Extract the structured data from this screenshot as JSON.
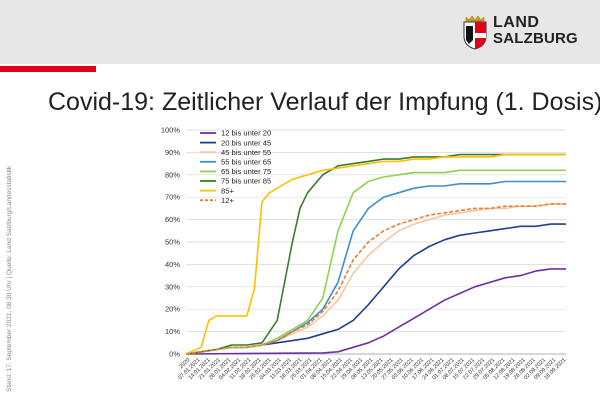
{
  "header": {
    "logo_line1": "LAND",
    "logo_line2": "SALZBURG",
    "colors": {
      "band": "#e7e7e7",
      "accent": "#e2001a"
    }
  },
  "title": "Covid-19: Zeitlicher Verlauf der Impfung (1. Dosis)",
  "source_note": "Stand: 17. September 2021, 08.30 Uhr | Quelle: Land Salzburg/Landesstatistik",
  "chart_data": {
    "type": "line",
    "ylim": [
      0,
      100
    ],
    "y_ticks": [
      "0%",
      "10%",
      "20%",
      "30%",
      "40%",
      "50%",
      "60%",
      "70%",
      "80%",
      "90%",
      "100%"
    ],
    "x_range": [
      0,
      50
    ],
    "x_labels": [
      "2020",
      "07.01.2021",
      "14.01.2021",
      "21.01.2021",
      "28.01.2021",
      "04.02.2021",
      "11.02.2021",
      "18.02.2021",
      "25.02.2021",
      "04.03.2021",
      "11.03.2021",
      "18.03.2021",
      "25.03.2021",
      "01.04.2021",
      "08.04.2021",
      "15.04.2021",
      "22.04.2021",
      "29.04.2021",
      "06.05.2021",
      "13.05.2021",
      "20.05.2021",
      "27.05.2021",
      "03.06.2021",
      "10.06.2021",
      "17.06.2021",
      "24.06.2021",
      "01.07.2021",
      "08.07.2021",
      "15.07.2021",
      "22.07.2021",
      "29.07.2021",
      "05.08.2021",
      "12.08.2021",
      "19.08.2021",
      "26.08.2021",
      "02.09.2021",
      "09.09.2021",
      "16.09.2021"
    ],
    "series": [
      {
        "name": "12 bis unter 20",
        "color": "#7030a0",
        "dashed": false,
        "points": [
          [
            0,
            0
          ],
          [
            18,
            0.5
          ],
          [
            20,
            1
          ],
          [
            22,
            3
          ],
          [
            24,
            5
          ],
          [
            26,
            8
          ],
          [
            28,
            12
          ],
          [
            30,
            16
          ],
          [
            32,
            20
          ],
          [
            34,
            24
          ],
          [
            36,
            27
          ],
          [
            38,
            30
          ],
          [
            40,
            32
          ],
          [
            42,
            34
          ],
          [
            44,
            35
          ],
          [
            46,
            37
          ],
          [
            48,
            38
          ],
          [
            50,
            38
          ]
        ]
      },
      {
        "name": "20 bis unter 45",
        "color": "#203f8c",
        "dashed": false,
        "points": [
          [
            0,
            0
          ],
          [
            2,
            1
          ],
          [
            4,
            2
          ],
          [
            6,
            3
          ],
          [
            8,
            3
          ],
          [
            10,
            4
          ],
          [
            12,
            5
          ],
          [
            14,
            6
          ],
          [
            16,
            7
          ],
          [
            18,
            9
          ],
          [
            20,
            11
          ],
          [
            22,
            15
          ],
          [
            24,
            22
          ],
          [
            26,
            30
          ],
          [
            28,
            38
          ],
          [
            30,
            44
          ],
          [
            32,
            48
          ],
          [
            34,
            51
          ],
          [
            36,
            53
          ],
          [
            38,
            54
          ],
          [
            40,
            55
          ],
          [
            42,
            56
          ],
          [
            44,
            57
          ],
          [
            46,
            57
          ],
          [
            48,
            58
          ],
          [
            50,
            58
          ]
        ]
      },
      {
        "name": "45 bis unter 55",
        "color": "#f7c6a3",
        "dashed": false,
        "points": [
          [
            0,
            0
          ],
          [
            2,
            1
          ],
          [
            4,
            2
          ],
          [
            6,
            3
          ],
          [
            8,
            3
          ],
          [
            10,
            4
          ],
          [
            12,
            6
          ],
          [
            14,
            9
          ],
          [
            16,
            12
          ],
          [
            18,
            17
          ],
          [
            20,
            24
          ],
          [
            22,
            36
          ],
          [
            24,
            44
          ],
          [
            26,
            50
          ],
          [
            28,
            55
          ],
          [
            30,
            58
          ],
          [
            32,
            60
          ],
          [
            34,
            62
          ],
          [
            36,
            63
          ],
          [
            38,
            64
          ],
          [
            40,
            65
          ],
          [
            42,
            65
          ],
          [
            44,
            66
          ],
          [
            46,
            66
          ],
          [
            48,
            67
          ],
          [
            50,
            67
          ]
        ]
      },
      {
        "name": "55 bis unter 65",
        "color": "#3b8fd1",
        "dashed": false,
        "points": [
          [
            0,
            0
          ],
          [
            2,
            1
          ],
          [
            4,
            2
          ],
          [
            6,
            3
          ],
          [
            8,
            3
          ],
          [
            10,
            4
          ],
          [
            12,
            6
          ],
          [
            14,
            10
          ],
          [
            16,
            14
          ],
          [
            18,
            20
          ],
          [
            20,
            32
          ],
          [
            22,
            55
          ],
          [
            24,
            65
          ],
          [
            26,
            70
          ],
          [
            28,
            72
          ],
          [
            30,
            74
          ],
          [
            32,
            75
          ],
          [
            34,
            75
          ],
          [
            36,
            76
          ],
          [
            38,
            76
          ],
          [
            40,
            76
          ],
          [
            42,
            77
          ],
          [
            44,
            77
          ],
          [
            46,
            77
          ],
          [
            48,
            77
          ],
          [
            50,
            77
          ]
        ]
      },
      {
        "name": "65 bis unter 75",
        "color": "#92d050",
        "dashed": false,
        "points": [
          [
            0,
            0
          ],
          [
            2,
            1
          ],
          [
            4,
            2
          ],
          [
            6,
            3
          ],
          [
            8,
            3
          ],
          [
            10,
            4
          ],
          [
            12,
            7
          ],
          [
            14,
            11
          ],
          [
            16,
            15
          ],
          [
            18,
            25
          ],
          [
            20,
            55
          ],
          [
            22,
            72
          ],
          [
            24,
            77
          ],
          [
            26,
            79
          ],
          [
            28,
            80
          ],
          [
            30,
            81
          ],
          [
            32,
            81
          ],
          [
            34,
            81
          ],
          [
            36,
            82
          ],
          [
            38,
            82
          ],
          [
            40,
            82
          ],
          [
            42,
            82
          ],
          [
            44,
            82
          ],
          [
            46,
            82
          ],
          [
            48,
            82
          ],
          [
            50,
            82
          ]
        ]
      },
      {
        "name": "75 bis unter 85",
        "color": "#3a7d2c",
        "dashed": false,
        "points": [
          [
            0,
            0
          ],
          [
            2,
            1
          ],
          [
            4,
            2
          ],
          [
            6,
            4
          ],
          [
            8,
            4
          ],
          [
            10,
            5
          ],
          [
            12,
            15
          ],
          [
            14,
            50
          ],
          [
            15,
            65
          ],
          [
            16,
            72
          ],
          [
            18,
            80
          ],
          [
            20,
            84
          ],
          [
            22,
            85
          ],
          [
            24,
            86
          ],
          [
            26,
            87
          ],
          [
            28,
            87
          ],
          [
            30,
            88
          ],
          [
            32,
            88
          ],
          [
            34,
            88
          ],
          [
            36,
            89
          ],
          [
            38,
            89
          ],
          [
            40,
            89
          ],
          [
            42,
            89
          ],
          [
            44,
            89
          ],
          [
            46,
            89
          ],
          [
            48,
            89
          ],
          [
            50,
            89
          ]
        ]
      },
      {
        "name": "85+",
        "color": "#ffc000",
        "dashed": false,
        "points": [
          [
            0,
            0
          ],
          [
            2,
            3
          ],
          [
            3,
            15
          ],
          [
            4,
            17
          ],
          [
            6,
            17
          ],
          [
            8,
            17
          ],
          [
            9,
            29
          ],
          [
            10,
            68
          ],
          [
            11,
            72
          ],
          [
            12,
            74
          ],
          [
            14,
            78
          ],
          [
            16,
            80
          ],
          [
            18,
            82
          ],
          [
            20,
            83
          ],
          [
            22,
            84
          ],
          [
            24,
            85
          ],
          [
            26,
            86
          ],
          [
            28,
            86
          ],
          [
            30,
            87
          ],
          [
            32,
            87
          ],
          [
            34,
            88
          ],
          [
            36,
            88
          ],
          [
            38,
            88
          ],
          [
            40,
            88
          ],
          [
            42,
            89
          ],
          [
            44,
            89
          ],
          [
            46,
            89
          ],
          [
            48,
            89
          ],
          [
            50,
            89
          ]
        ]
      },
      {
        "name": "12+",
        "color": "#ed7d31",
        "dashed": true,
        "points": [
          [
            0,
            0
          ],
          [
            2,
            1
          ],
          [
            4,
            2
          ],
          [
            6,
            3
          ],
          [
            8,
            3
          ],
          [
            10,
            4
          ],
          [
            12,
            6
          ],
          [
            14,
            10
          ],
          [
            16,
            13
          ],
          [
            18,
            19
          ],
          [
            20,
            28
          ],
          [
            22,
            42
          ],
          [
            24,
            50
          ],
          [
            26,
            55
          ],
          [
            28,
            58
          ],
          [
            30,
            60
          ],
          [
            32,
            62
          ],
          [
            34,
            63
          ],
          [
            36,
            64
          ],
          [
            38,
            65
          ],
          [
            40,
            65
          ],
          [
            42,
            66
          ],
          [
            44,
            66
          ],
          [
            46,
            66
          ],
          [
            48,
            67
          ],
          [
            50,
            67
          ]
        ]
      }
    ]
  }
}
